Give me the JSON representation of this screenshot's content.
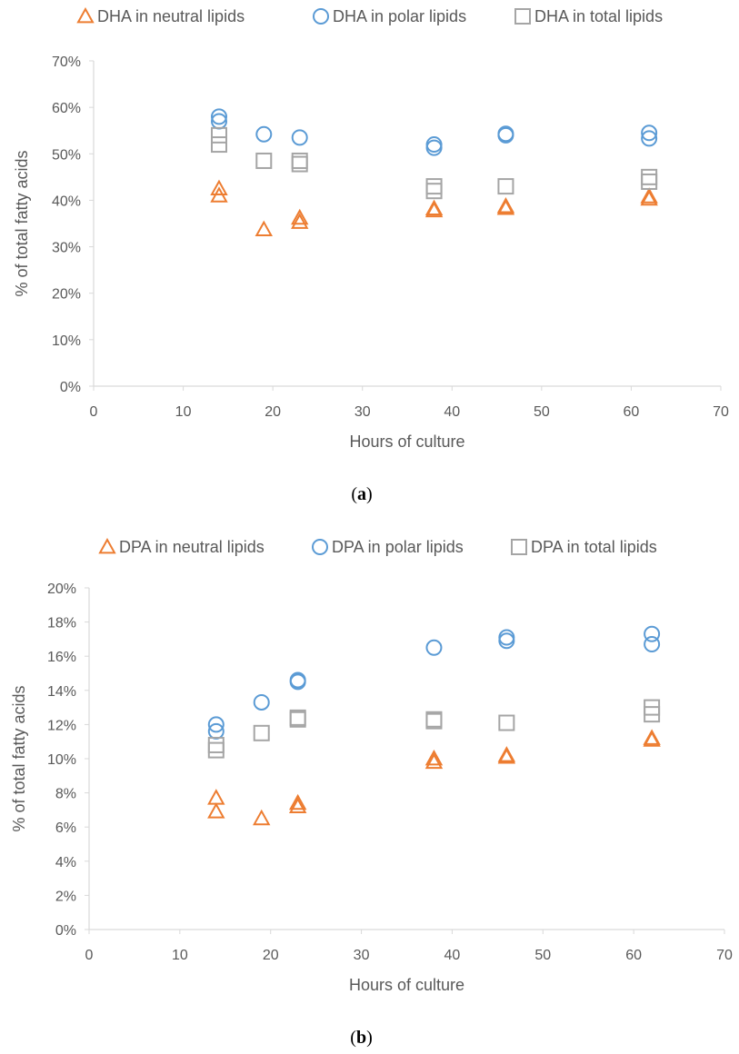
{
  "colors": {
    "neutral": "#ED7D31",
    "polar": "#5B9BD5",
    "total": "#A5A5A5",
    "axis": "#D9D9D9",
    "text": "#595959"
  },
  "chart_data": [
    {
      "type": "scatter",
      "panel_label": "a",
      "xlabel": "Hours of culture",
      "ylabel": "% of total fatty acids",
      "xlim": [
        0,
        70
      ],
      "ylim": [
        0,
        70
      ],
      "x_ticks": [
        0,
        10,
        20,
        30,
        40,
        50,
        60,
        70
      ],
      "y_ticks": [
        0,
        10,
        20,
        30,
        40,
        50,
        60,
        70
      ],
      "y_tick_labels": [
        "0%",
        "10%",
        "20%",
        "30%",
        "40%",
        "50%",
        "60%",
        "70%"
      ],
      "legend_position": "top",
      "grid": false,
      "series": [
        {
          "name": "DHA in neutral lipids",
          "marker": "triangle",
          "color": "#ED7D31",
          "points": [
            [
              14,
              42.5
            ],
            [
              14,
              41.0
            ],
            [
              19,
              33.7
            ],
            [
              23,
              36.2
            ],
            [
              23,
              35.3
            ],
            [
              38,
              37.8
            ],
            [
              38,
              38.2
            ],
            [
              46,
              38.3
            ],
            [
              46,
              38.7
            ],
            [
              62,
              40.3
            ],
            [
              62,
              40.8
            ]
          ]
        },
        {
          "name": "DHA in polar lipids",
          "marker": "circle",
          "color": "#5B9BD5",
          "points": [
            [
              14,
              58.0
            ],
            [
              14,
              57.0
            ],
            [
              19,
              54.2
            ],
            [
              23,
              53.5
            ],
            [
              38,
              51.3
            ],
            [
              38,
              52.0
            ],
            [
              46,
              54.0
            ],
            [
              46,
              54.3
            ],
            [
              62,
              53.3
            ],
            [
              62,
              54.5
            ]
          ]
        },
        {
          "name": "DHA in total lipids",
          "marker": "square",
          "color": "#A5A5A5",
          "points": [
            [
              14,
              52.0
            ],
            [
              14,
              54.0
            ],
            [
              19,
              48.5
            ],
            [
              23,
              47.8
            ],
            [
              23,
              48.5
            ],
            [
              38,
              42.0
            ],
            [
              38,
              43.0
            ],
            [
              46,
              43.0
            ],
            [
              62,
              44.0
            ],
            [
              62,
              45.0
            ]
          ]
        }
      ]
    },
    {
      "type": "scatter",
      "panel_label": "b",
      "xlabel": "Hours of culture",
      "ylabel": "% of total fatty acids",
      "xlim": [
        0,
        70
      ],
      "ylim": [
        0,
        20
      ],
      "x_ticks": [
        0,
        10,
        20,
        30,
        40,
        50,
        60,
        70
      ],
      "y_ticks": [
        0,
        2,
        4,
        6,
        8,
        10,
        12,
        14,
        16,
        18,
        20
      ],
      "y_tick_labels": [
        "0%",
        "2%",
        "4%",
        "6%",
        "8%",
        "10%",
        "12%",
        "14%",
        "16%",
        "18%",
        "20%"
      ],
      "legend_position": "top",
      "grid": false,
      "series": [
        {
          "name": "DPA in neutral lipids",
          "marker": "triangle",
          "color": "#ED7D31",
          "points": [
            [
              14,
              7.7
            ],
            [
              14,
              6.9
            ],
            [
              19,
              6.5
            ],
            [
              23,
              7.4
            ],
            [
              23,
              7.2
            ],
            [
              38,
              10.0
            ],
            [
              38,
              9.8
            ],
            [
              46,
              10.1
            ],
            [
              46,
              10.2
            ],
            [
              62,
              11.1
            ],
            [
              62,
              11.2
            ]
          ]
        },
        {
          "name": "DPA in polar lipids",
          "marker": "circle",
          "color": "#5B9BD5",
          "points": [
            [
              14,
              12.0
            ],
            [
              14,
              11.6
            ],
            [
              19,
              13.3
            ],
            [
              23,
              14.5
            ],
            [
              23,
              14.6
            ],
            [
              38,
              16.5
            ],
            [
              46,
              16.9
            ],
            [
              46,
              17.1
            ],
            [
              62,
              16.7
            ],
            [
              62,
              17.3
            ]
          ]
        },
        {
          "name": "DPA in total lipids",
          "marker": "square",
          "color": "#A5A5A5",
          "points": [
            [
              14,
              10.5
            ],
            [
              14,
              10.8
            ],
            [
              19,
              11.5
            ],
            [
              23,
              12.3
            ],
            [
              23,
              12.4
            ],
            [
              38,
              12.2
            ],
            [
              38,
              12.3
            ],
            [
              46,
              12.1
            ],
            [
              62,
              12.6
            ],
            [
              62,
              13.0
            ]
          ]
        }
      ]
    }
  ]
}
